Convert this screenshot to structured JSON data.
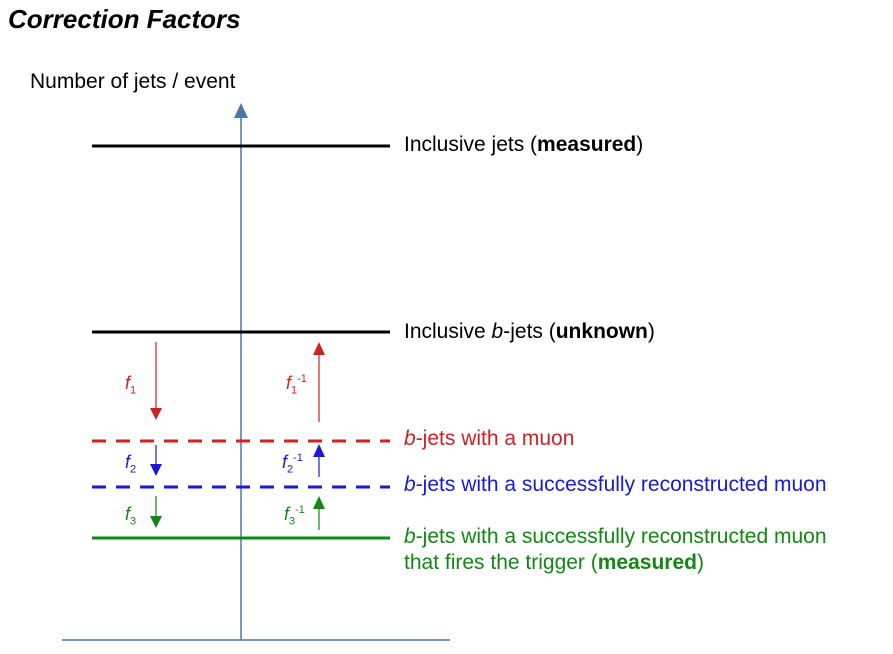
{
  "title": "Correction Factors",
  "y_axis_label": "Number of jets / event",
  "levels": {
    "inclusive_jets": {
      "prefix": "Inclusive jets (",
      "bold": "measured",
      "suffix": ")"
    },
    "inclusive_bjets": {
      "prefix": "Inclusive ",
      "italic": "b",
      "mid": "-jets (",
      "bold": "unknown",
      "suffix": ")"
    },
    "bjets_muon": {
      "italic": "b",
      "text": "-jets with a muon"
    },
    "bjets_reco_muon": {
      "italic": "b",
      "text": "-jets with a successfully reconstructed muon"
    },
    "bjets_trigger": {
      "italic": "b",
      "line1": "-jets with a successfully reconstructed muon",
      "line2_prefix": "that fires the trigger (",
      "bold": "measured",
      "suffix": ")"
    }
  },
  "factors": {
    "f1": {
      "base": "f",
      "sub": "1"
    },
    "f2": {
      "base": "f",
      "sub": "2"
    },
    "f3": {
      "base": "f",
      "sub": "3"
    },
    "f1_inv": {
      "base": "f",
      "sub": "1",
      "sup": "-1"
    },
    "f2_inv": {
      "base": "f",
      "sub": "2",
      "sup": "-1"
    },
    "f3_inv": {
      "base": "f",
      "sub": "3",
      "sup": "-1"
    }
  },
  "colors": {
    "black": "#000000",
    "red": "#cc2222",
    "blue": "#1a1ad6",
    "green": "#118811",
    "axis": "#4a78a8"
  }
}
